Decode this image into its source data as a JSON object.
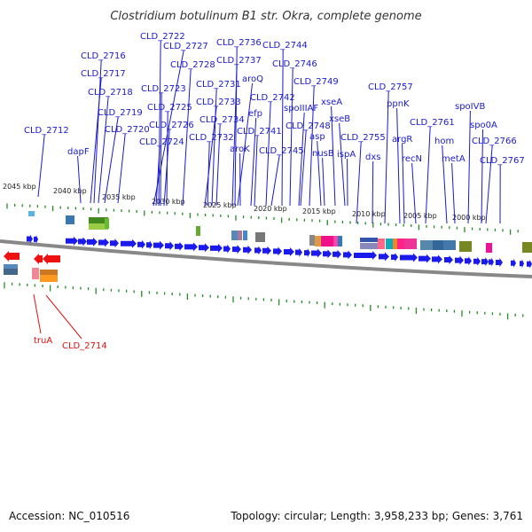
{
  "map": {
    "title": "Clostridium botulinum B1 str. Okra, complete genome",
    "accession": "Accession: NC_010516",
    "topology": "Topology: circular; Length: 3,958,233 bp; Genes: 3,761",
    "colors": {
      "forward_gene": "#1a1aee",
      "reverse_gene": "#ee1111",
      "label_blue": "#1a1acd",
      "label_red": "#dd1111",
      "backbone": "#888888",
      "tick": "#228b22"
    },
    "kbp_ticks": [
      "2045 kbp",
      "2040 kbp",
      "2035 kbp",
      "2030 kbp",
      "2025 kbp",
      "2020 kbp",
      "2015 kbp",
      "2010 kbp",
      "2005 kbp",
      "2000 kbp"
    ],
    "top_labels": [
      "CLD_2722",
      "CLD_2727",
      "CLD_2736",
      "CLD_2744",
      "CLD_2716",
      "CLD_2728",
      "CLD_2737",
      "CLD_2746",
      "CLD_2717",
      "aroQ",
      "CLD_2731",
      "CLD_2749",
      "CLD_2757",
      "CLD_2718",
      "CLD_2723",
      "CLD_2742",
      "CLD_2733",
      "xseA",
      "spoIVB",
      "ppnK",
      "CLD_2719",
      "CLD_2725",
      "efp",
      "spoIIIAF",
      "xseB",
      "CLD_2734",
      "CLD_2761",
      "CLD_2712",
      "CLD_2726",
      "CLD_2741",
      "CLD_2748",
      "spo0A",
      "CLD_2720",
      "asp",
      "argR",
      "CLD_2724",
      "CLD_2732",
      "CLD_2755",
      "hom",
      "CLD_2766",
      "dapF",
      "aroK",
      "CLD_2745",
      "nusB",
      "ispA",
      "dxs",
      "recN",
      "metA",
      "CLD_2767"
    ],
    "bottom_labels": [
      "truA",
      "CLD_2714"
    ]
  }
}
